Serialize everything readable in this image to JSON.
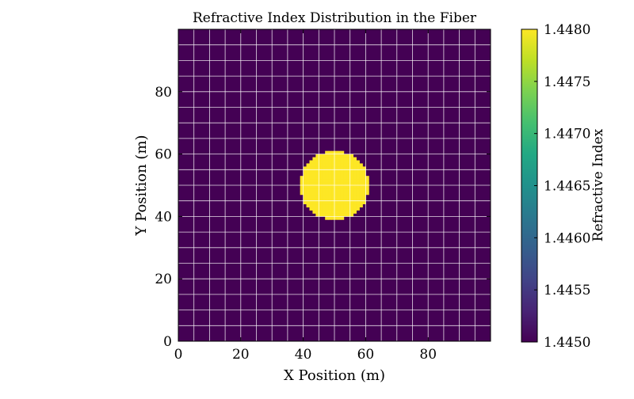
{
  "chart_data": {
    "type": "heatmap",
    "title": "Refractive Index Distribution in the Fiber",
    "xlabel": "X Position (m)",
    "ylabel": "Y Position (m)",
    "xlim": [
      0,
      100
    ],
    "ylim": [
      0,
      100
    ],
    "x_ticks": [
      0,
      20,
      40,
      60,
      80
    ],
    "y_ticks": [
      0,
      20,
      40,
      60,
      80
    ],
    "grid": true,
    "colormap": "viridis",
    "cladding_index": 1.445,
    "core_index": 1.448,
    "core_center": [
      50,
      50
    ],
    "core_radius": 11,
    "colorbar": {
      "label": "Refractive Index",
      "range": [
        1.445,
        1.448
      ],
      "ticks": [
        "1.4450",
        "1.4455",
        "1.4460",
        "1.4465",
        "1.4470",
        "1.4475",
        "1.4480"
      ]
    },
    "colors": {
      "low": "#440154",
      "high": "#fde725"
    }
  }
}
